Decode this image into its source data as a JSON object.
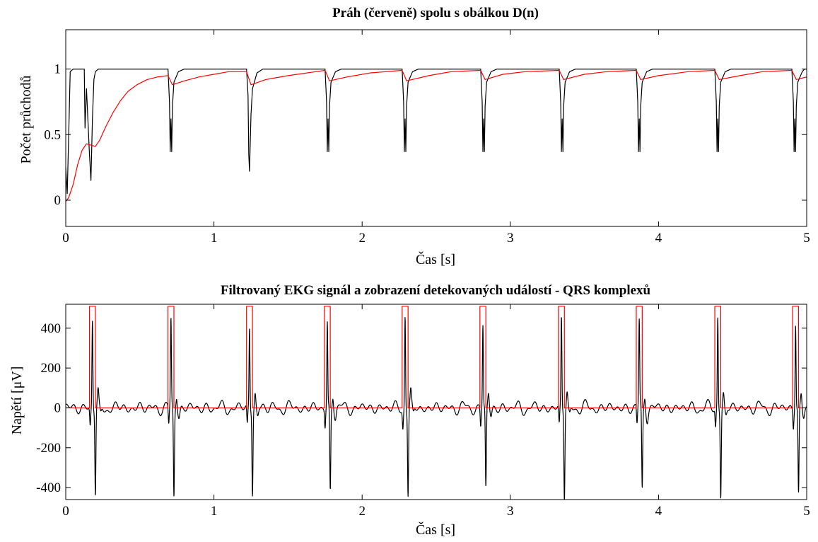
{
  "colors": {
    "signal": "#000000",
    "highlight": "#ff0000",
    "axes": "#000000",
    "background": "#ffffff"
  },
  "chart_data": [
    {
      "type": "line",
      "title": "Práh (červeně) spolu s obálkou D(n)",
      "xlabel": "Čas [s]",
      "ylabel": "Počet průchodů",
      "xlim": [
        0,
        5
      ],
      "ylim": [
        -0.2,
        1.3
      ],
      "xticks": [
        0,
        1,
        2,
        3,
        4,
        5
      ],
      "xtick_labels": [
        "0",
        "1",
        "2",
        "3",
        "4",
        "5"
      ],
      "yticks": [
        0,
        0.5,
        1
      ],
      "ytick_labels": [
        "0",
        "0.5",
        "1"
      ],
      "grid": false,
      "series": [
        {
          "color": "#000000",
          "x": [
            0,
            0.01,
            0.02,
            0.03,
            0.05,
            0.07,
            0.1,
            0.125,
            0.13,
            0.14,
            0.16,
            0.17,
            0.18,
            0.19,
            0.2,
            0.22,
            0.25,
            0.3,
            0.69,
            0.7,
            0.705,
            0.71,
            0.715,
            0.72,
            0.73,
            0.76,
            0.8,
            0.85,
            1.22,
            1.23,
            1.235,
            1.24,
            1.25,
            1.26,
            1.29,
            1.33,
            1.37,
            1.75,
            1.76,
            1.765,
            1.77,
            1.775,
            1.78,
            1.79,
            1.82,
            1.86,
            1.9,
            2.27,
            2.28,
            2.285,
            2.29,
            2.295,
            2.3,
            2.31,
            2.34,
            2.38,
            2.42,
            2.8,
            2.81,
            2.815,
            2.82,
            2.825,
            2.83,
            2.84,
            2.87,
            2.91,
            2.95,
            3.33,
            3.34,
            3.345,
            3.35,
            3.355,
            3.36,
            3.37,
            3.4,
            3.44,
            3.48,
            3.85,
            3.86,
            3.865,
            3.87,
            3.875,
            3.88,
            3.89,
            3.92,
            3.96,
            4.0,
            4.38,
            4.39,
            4.395,
            4.4,
            4.405,
            4.41,
            4.42,
            4.45,
            4.49,
            4.53,
            4.9,
            4.91,
            4.915,
            4.92,
            4.925,
            4.93,
            4.94,
            4.97,
            4.985,
            5.0
          ],
          "y": [
            0.25,
            0.05,
            0.5,
            0.98,
            1.0,
            1.0,
            1.0,
            1.0,
            0.55,
            0.85,
            0.35,
            0.15,
            0.62,
            0.92,
            0.98,
            1.0,
            1.0,
            1.0,
            1.0,
            0.75,
            0.37,
            0.62,
            0.37,
            0.72,
            0.9,
            0.98,
            1.0,
            1.0,
            1.0,
            0.8,
            0.35,
            0.22,
            0.65,
            0.85,
            0.97,
            1.0,
            1.0,
            1.0,
            0.75,
            0.37,
            0.62,
            0.37,
            0.72,
            0.9,
            0.98,
            1.0,
            1.0,
            1.0,
            0.75,
            0.37,
            0.62,
            0.37,
            0.72,
            0.9,
            0.98,
            1.0,
            1.0,
            1.0,
            0.75,
            0.37,
            0.62,
            0.37,
            0.72,
            0.9,
            0.98,
            1.0,
            1.0,
            1.0,
            0.75,
            0.37,
            0.62,
            0.37,
            0.72,
            0.9,
            0.98,
            1.0,
            1.0,
            1.0,
            0.75,
            0.37,
            0.62,
            0.37,
            0.72,
            0.9,
            0.98,
            1.0,
            1.0,
            1.0,
            0.75,
            0.37,
            0.62,
            0.37,
            0.72,
            0.9,
            0.98,
            1.0,
            1.0,
            1.0,
            0.75,
            0.37,
            0.62,
            0.37,
            0.72,
            0.9,
            0.98,
            1.0,
            1.0
          ]
        },
        {
          "color": "#ff0000",
          "x": [
            0,
            0.02,
            0.05,
            0.08,
            0.11,
            0.14,
            0.17,
            0.2,
            0.23,
            0.27,
            0.32,
            0.37,
            0.42,
            0.48,
            0.55,
            0.62,
            0.69,
            0.72,
            0.8,
            0.9,
            1.0,
            1.1,
            1.22,
            1.25,
            1.35,
            1.5,
            1.75,
            1.78,
            1.9,
            2.05,
            2.27,
            2.3,
            2.45,
            2.6,
            2.8,
            2.83,
            2.95,
            3.1,
            3.33,
            3.36,
            3.5,
            3.65,
            3.85,
            3.88,
            4.0,
            4.2,
            4.38,
            4.41,
            4.55,
            4.7,
            4.9,
            4.93,
            5.0
          ],
          "y": [
            -0.01,
            0.02,
            0.12,
            0.27,
            0.38,
            0.43,
            0.42,
            0.41,
            0.46,
            0.56,
            0.67,
            0.76,
            0.83,
            0.88,
            0.92,
            0.94,
            0.95,
            0.88,
            0.91,
            0.94,
            0.96,
            0.98,
            0.98,
            0.88,
            0.92,
            0.95,
            0.99,
            0.91,
            0.94,
            0.97,
            0.99,
            0.91,
            0.95,
            0.98,
            0.99,
            0.92,
            0.96,
            0.98,
            0.99,
            0.92,
            0.96,
            0.98,
            0.99,
            0.92,
            0.95,
            0.98,
            0.99,
            0.92,
            0.95,
            0.98,
            0.99,
            0.92,
            0.94
          ]
        }
      ]
    },
    {
      "type": "line",
      "title": "Filtrovaný EKG signál a zobrazení detekovaných událostí - QRS komplexů",
      "xlabel": "Čas [s]",
      "ylabel": "Napětí [μV]",
      "xlim": [
        0,
        5
      ],
      "ylim": [
        -460,
        520
      ],
      "xticks": [
        0,
        1,
        2,
        3,
        4,
        5
      ],
      "xtick_labels": [
        "0",
        "1",
        "2",
        "3",
        "4",
        "5"
      ],
      "yticks": [
        -400,
        -200,
        0,
        200,
        400
      ],
      "ytick_labels": [
        "-400",
        "-200",
        "0",
        "200",
        "400"
      ],
      "grid": false,
      "r_peaks_s": [
        0.18,
        0.71,
        1.24,
        1.765,
        2.29,
        2.815,
        3.345,
        3.87,
        4.4,
        4.925
      ],
      "r_amplitudes_uV": [
        445,
        440,
        405,
        425,
        475,
        420,
        455,
        430,
        460,
        430
      ],
      "s_amplitudes_uV": [
        -430,
        -450,
        -420,
        -425,
        -435,
        -415,
        -450,
        -420,
        -440,
        -440
      ],
      "series": [
        {
          "color": "#000000",
          "kind": "ecg"
        },
        {
          "color": "#ff0000",
          "kind": "detection",
          "high_level_uV": 510,
          "low_level_uV": 0,
          "pulse_start_s": [
            0.16,
            0.69,
            1.22,
            1.745,
            2.27,
            2.795,
            3.325,
            3.85,
            4.38,
            4.905
          ],
          "pulse_end_s": [
            0.2,
            0.73,
            1.26,
            1.785,
            2.31,
            2.835,
            3.365,
            3.89,
            4.42,
            4.945
          ]
        }
      ]
    }
  ]
}
